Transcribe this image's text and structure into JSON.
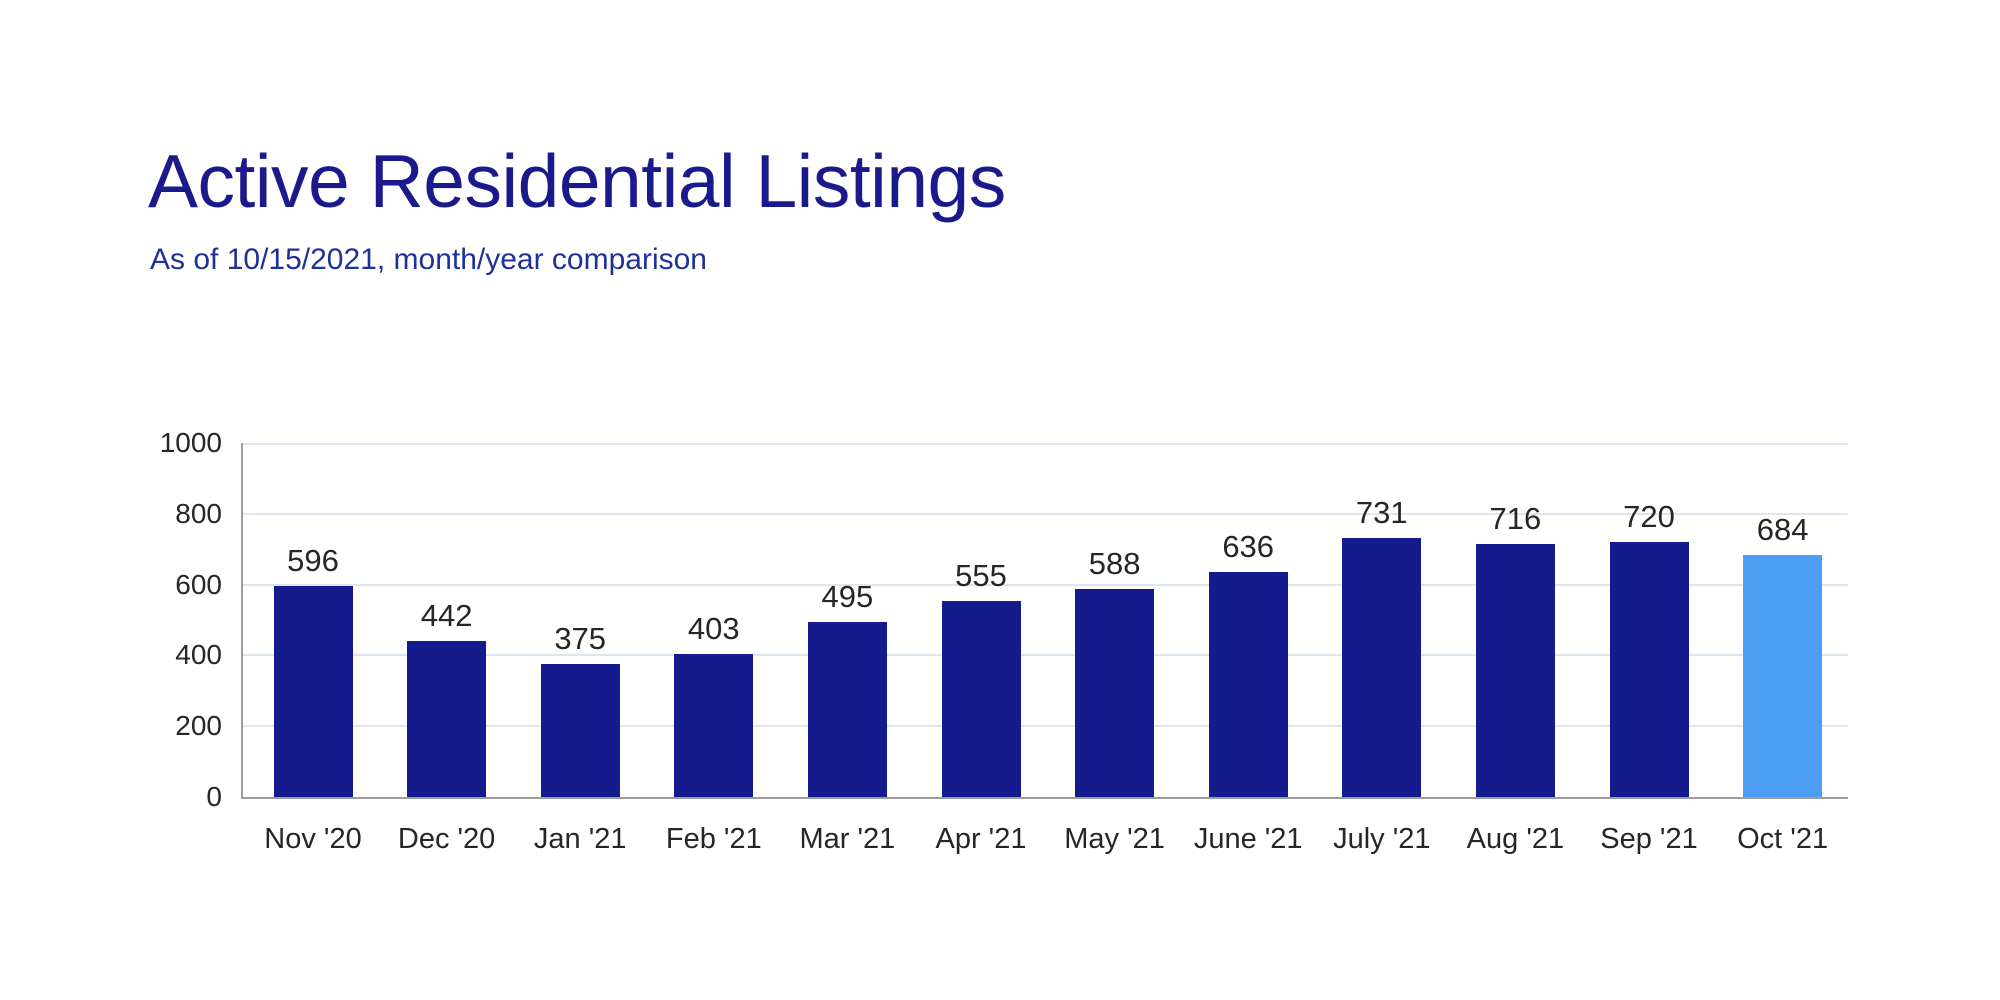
{
  "header": {
    "title": "Active Residential Listings",
    "subtitle": "As of 10/15/2021, month/year comparison"
  },
  "chart_data": {
    "type": "bar",
    "title": "Active Residential Listings",
    "subtitle": "As of 10/15/2021, month/year comparison",
    "categories": [
      "Nov '20",
      "Dec '20",
      "Jan '21",
      "Feb '21",
      "Mar '21",
      "Apr '21",
      "May '21",
      "June '21",
      "July '21",
      "Aug '21",
      "Sep '21",
      "Oct '21"
    ],
    "values": [
      596,
      442,
      375,
      403,
      495,
      555,
      588,
      636,
      731,
      716,
      720,
      684
    ],
    "value_labels": [
      596,
      442,
      375,
      403,
      495,
      555,
      588,
      636,
      731,
      716,
      720,
      684
    ],
    "xlabel": "",
    "ylabel": "",
    "ylim": [
      0,
      1000
    ],
    "yticks": [
      0,
      200,
      400,
      600,
      800,
      1000
    ],
    "grid": "horizontal-light",
    "legend": "none",
    "highlight_index": 11,
    "colors": {
      "bar": "#141b8c",
      "highlight_bar": "#4c9ef5",
      "gridline": "#dce7f2",
      "axis": "#9c9c9c",
      "label_text": "#262626",
      "title_text": "#1a1a8c",
      "subtitle_text": "#1e3199"
    }
  }
}
